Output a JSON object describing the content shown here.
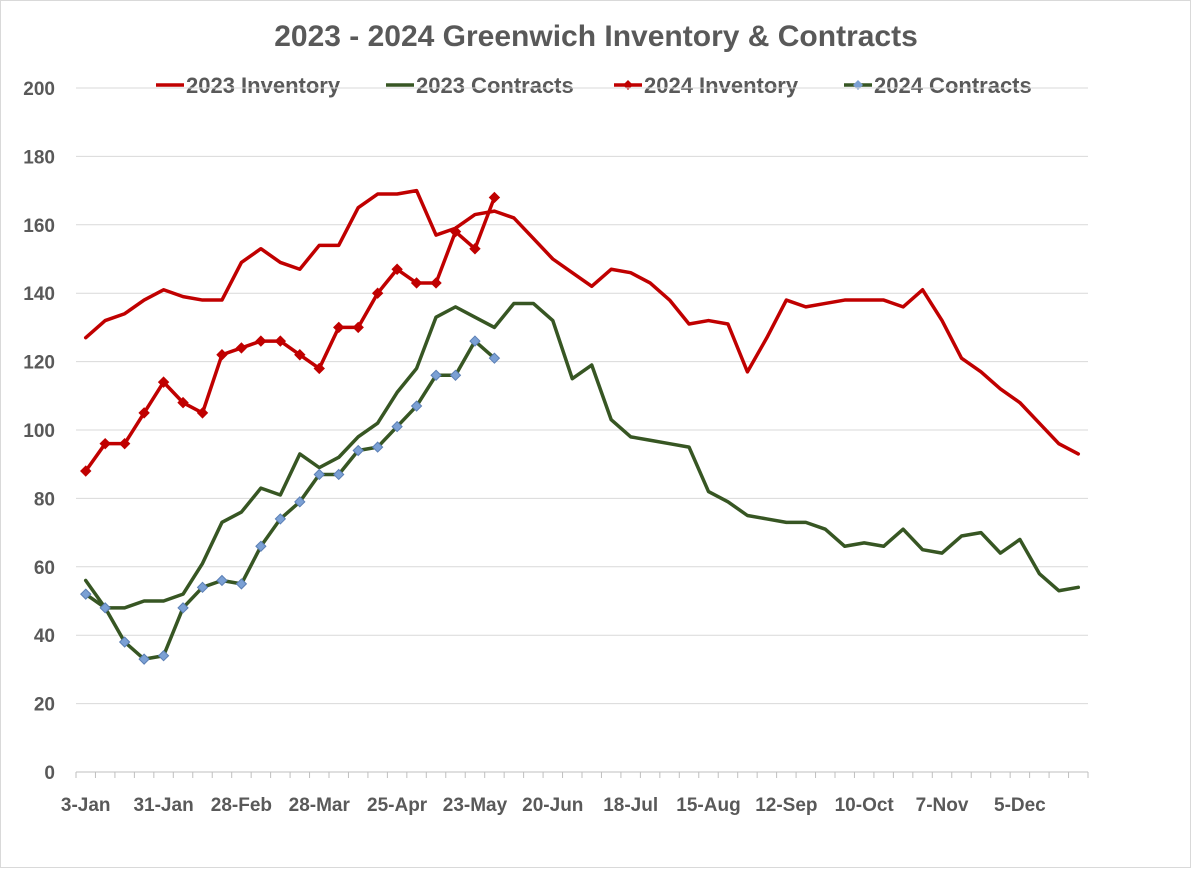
{
  "chart_data": {
    "type": "line",
    "title": "2023 -  2024 Greenwich Inventory & Contracts",
    "ylim": [
      0,
      200
    ],
    "yticks": [
      0,
      20,
      40,
      60,
      80,
      100,
      120,
      140,
      160,
      180,
      200
    ],
    "x_tick_labels": [
      "3-Jan",
      "31-Jan",
      "28-Feb",
      "28-Mar",
      "25-Apr",
      "23-May",
      "20-Jun",
      "18-Jul",
      "15-Aug",
      "12-Sep",
      "10-Oct",
      "7-Nov",
      "5-Dec"
    ],
    "x_tick_label_every": 4,
    "num_weeks": 52,
    "grid": "horizontal",
    "legend_position": "top",
    "series": [
      {
        "name": "2023 Inventory",
        "color": "#c00000",
        "marker": "none",
        "values": [
          127,
          132,
          134,
          138,
          141,
          139,
          138,
          138,
          149,
          153,
          149,
          147,
          154,
          154,
          165,
          169,
          169,
          170,
          157,
          159,
          163,
          164,
          162,
          156,
          150,
          146,
          142,
          147,
          146,
          143,
          138,
          131,
          132,
          131,
          117,
          127,
          138,
          136,
          137,
          138,
          138,
          138,
          136,
          141,
          132,
          121,
          117,
          112,
          108,
          102,
          96,
          93
        ]
      },
      {
        "name": "2023 Contracts",
        "color": "#375623",
        "marker": "none",
        "values": [
          56,
          48,
          48,
          50,
          50,
          52,
          61,
          73,
          76,
          83,
          81,
          93,
          89,
          92,
          98,
          102,
          111,
          118,
          133,
          136,
          133,
          130,
          137,
          137,
          132,
          115,
          119,
          103,
          98,
          97,
          96,
          95,
          82,
          79,
          75,
          74,
          73,
          73,
          71,
          66,
          67,
          66,
          71,
          65,
          64,
          69,
          70,
          64,
          68,
          58,
          53,
          54
        ]
      },
      {
        "name": "2024 Inventory",
        "color": "#c00000",
        "marker": "diamond",
        "marker_color": "#c00000",
        "values": [
          88,
          96,
          96,
          105,
          114,
          108,
          105,
          122,
          124,
          126,
          126,
          122,
          118,
          130,
          130,
          140,
          147,
          143,
          143,
          158,
          153,
          168
        ]
      },
      {
        "name": "2024 Contracts",
        "color": "#375623",
        "marker": "diamond",
        "marker_color": "#7ba0d4",
        "values": [
          52,
          48,
          38,
          33,
          34,
          48,
          54,
          56,
          55,
          66,
          74,
          79,
          87,
          87,
          94,
          95,
          101,
          107,
          116,
          116,
          126,
          121
        ]
      }
    ]
  }
}
